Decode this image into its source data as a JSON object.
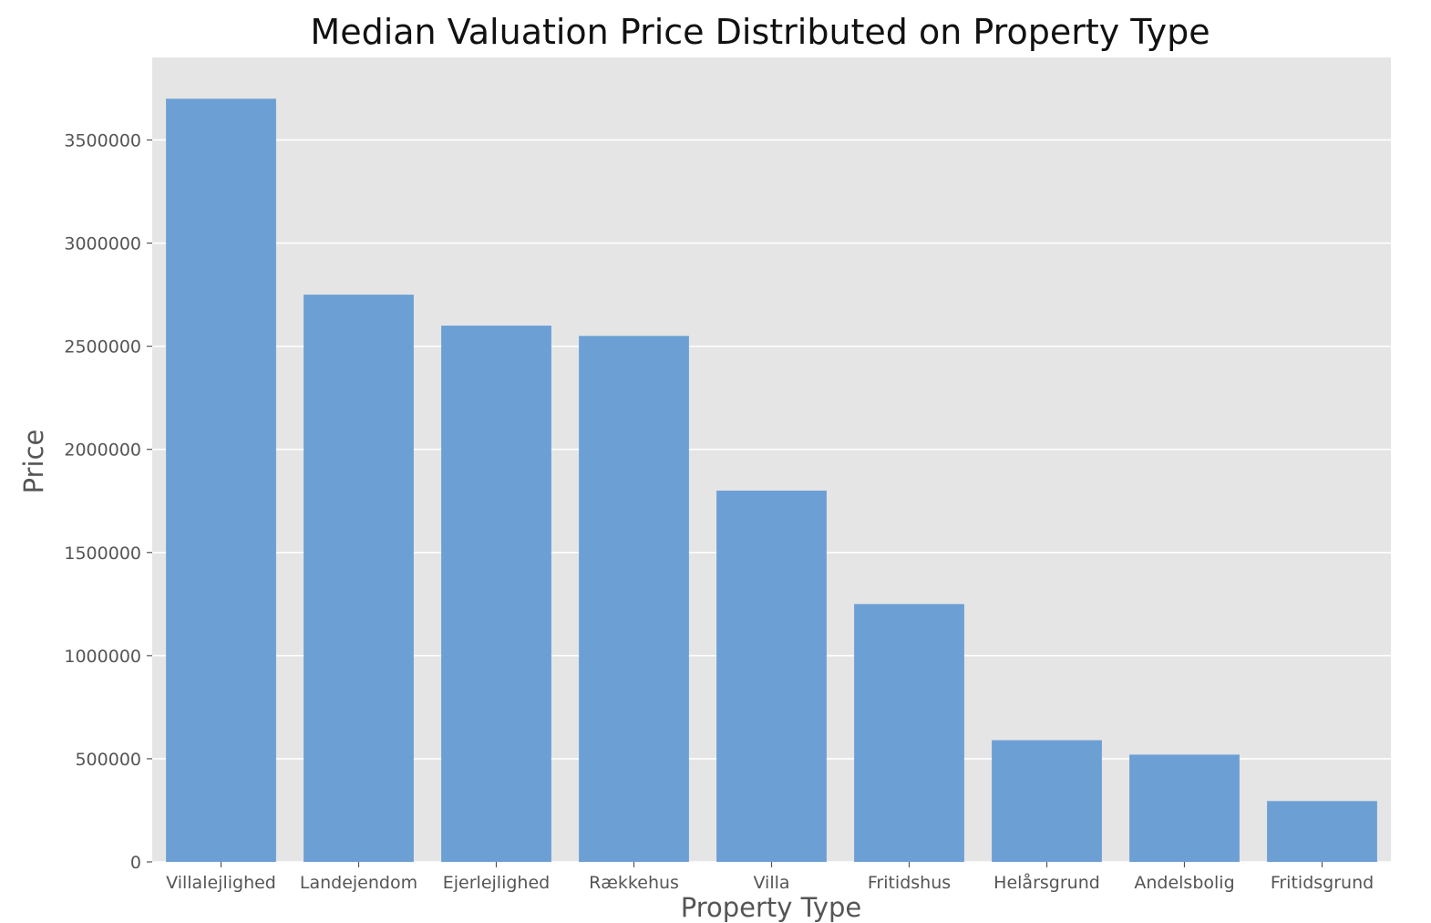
{
  "chart_data": {
    "type": "bar",
    "title": "Median Valuation Price Distributed on Property Type",
    "xlabel": "Property Type",
    "ylabel": "Price",
    "categories": [
      "Villalejlighed",
      "Landejendom",
      "Ejerlejlighed",
      "Rækkehus",
      "Villa",
      "Fritidshus",
      "Helårsgrund",
      "Andelsbolig",
      "Fritidsgrund"
    ],
    "values": [
      3700000,
      2750000,
      2600000,
      2550000,
      1800000,
      1250000,
      590000,
      520000,
      295000
    ],
    "ylim": [
      0,
      3900000
    ],
    "yticks": [
      0,
      500000,
      1000000,
      1500000,
      2000000,
      2500000,
      3000000,
      3500000
    ],
    "ytick_labels": [
      "0",
      "500000",
      "1000000",
      "1500000",
      "2000000",
      "2500000",
      "3000000",
      "3500000"
    ],
    "grid": true,
    "legend": "none",
    "colors": {
      "bar": "#6ca0d4",
      "plot_background": "#e5e5e5",
      "grid": "#ffffff"
    }
  }
}
